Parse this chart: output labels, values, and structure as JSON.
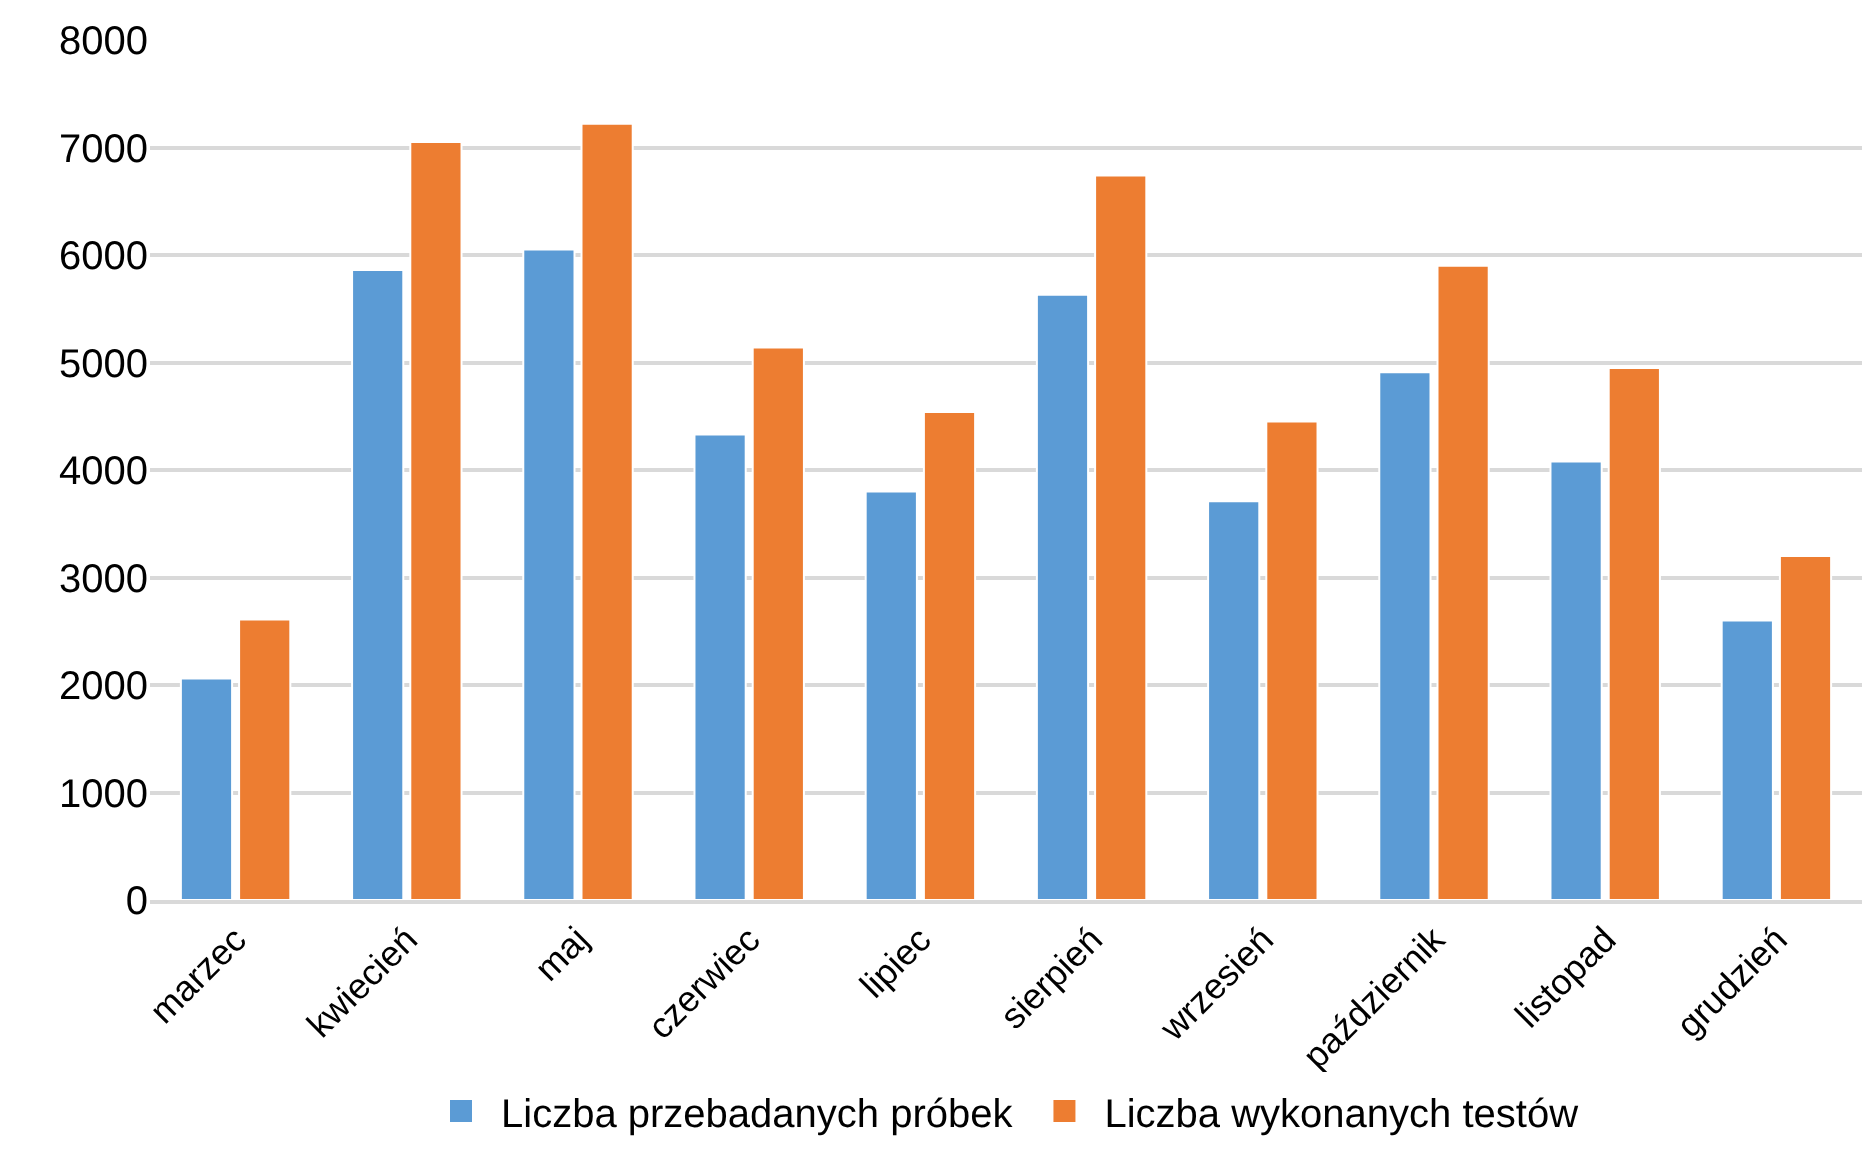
{
  "chart_data": {
    "type": "bar",
    "categories": [
      "marzec",
      "kwiecień",
      "maj",
      "czerwiec",
      "lipiec",
      "sierpień",
      "wrzesień",
      "październik",
      "listopad",
      "grudzień"
    ],
    "series": [
      {
        "name": "Liczba przebadanych próbek",
        "color": "#5b9bd5",
        "values": [
          2060,
          5860,
          6050,
          4330,
          3800,
          5630,
          3710,
          4910,
          4080,
          2600
        ]
      },
      {
        "name": "Liczba wykonanych testów",
        "color": "#ed7d31",
        "values": [
          2610,
          7050,
          7220,
          5140,
          4540,
          6740,
          4450,
          5900,
          4950,
          3200
        ]
      }
    ],
    "ylim": [
      0,
      8000
    ],
    "yticks": [
      0,
      1000,
      2000,
      3000,
      4000,
      5000,
      6000,
      7000,
      8000
    ],
    "grid": "y",
    "legend": "bottom"
  }
}
